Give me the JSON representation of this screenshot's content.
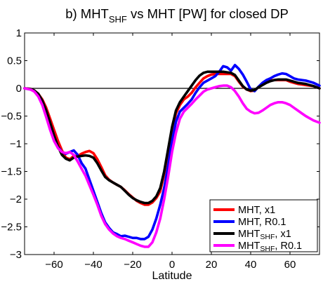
{
  "chart_data": {
    "type": "line",
    "title": {
      "prefix": "b) MHT",
      "sub": "SHF",
      "suffix": " vs MHT [PW] for closed DP"
    },
    "xlabel": "Latitude",
    "ylabel": "",
    "xlim": [
      -75,
      75
    ],
    "ylim": [
      -3,
      1
    ],
    "xticks": [
      -60,
      -40,
      -20,
      0,
      20,
      40,
      60
    ],
    "yticks": [
      -3,
      -2.5,
      -2,
      -1.5,
      -1,
      -0.5,
      0,
      0.5,
      1
    ],
    "xtick_labels": [
      "−60",
      "−40",
      "−20",
      "0",
      "20",
      "40",
      "60"
    ],
    "ytick_labels": [
      "−3",
      "−2.5",
      "−2",
      "−1.5",
      "−1",
      "−0.5",
      "0",
      "0.5",
      "1"
    ],
    "grid": false,
    "legend_position": "bottom-right",
    "zero_line": true,
    "series": [
      {
        "name": "MHT, x1",
        "legend": {
          "main": "MHT, x1",
          "sub": "",
          "after": ""
        },
        "color": "#ff0000",
        "x": [
          -75,
          -72,
          -70,
          -68,
          -66,
          -64,
          -62,
          -60,
          -58,
          -56,
          -54,
          -52,
          -50,
          -48,
          -46,
          -44,
          -42,
          -40,
          -38,
          -36,
          -34,
          -32,
          -30,
          -28,
          -26,
          -24,
          -22,
          -20,
          -18,
          -16,
          -14,
          -12,
          -10,
          -8,
          -6,
          -4,
          -2,
          0,
          2,
          4,
          6,
          8,
          10,
          12,
          14,
          16,
          18,
          20,
          22,
          24,
          26,
          28,
          30,
          32,
          34,
          36,
          38,
          40,
          42,
          44,
          46,
          48,
          50,
          52,
          54,
          56,
          58,
          60,
          62,
          64,
          66,
          68,
          70,
          72,
          75
        ],
        "y": [
          0,
          -0.01,
          -0.04,
          -0.1,
          -0.2,
          -0.35,
          -0.55,
          -0.75,
          -0.95,
          -1.12,
          -1.25,
          -1.28,
          -1.22,
          -1.22,
          -1.18,
          -1.15,
          -1.13,
          -1.17,
          -1.28,
          -1.42,
          -1.57,
          -1.65,
          -1.7,
          -1.74,
          -1.78,
          -1.84,
          -1.91,
          -1.97,
          -2.03,
          -2.07,
          -2.1,
          -2.1,
          -2.06,
          -1.98,
          -1.86,
          -1.55,
          -1.15,
          -0.75,
          -0.45,
          -0.3,
          -0.2,
          -0.15,
          -0.08,
          0.02,
          0.1,
          0.18,
          0.22,
          0.25,
          0.26,
          0.26,
          0.26,
          0.26,
          0.26,
          0.22,
          0.12,
          0.03,
          -0.02,
          -0.05,
          -0.04,
          0.02,
          0.08,
          0.12,
          0.14,
          0.15,
          0.15,
          0.15,
          0.15,
          0.12,
          0.1,
          0.08,
          0.07,
          0.06,
          0.05,
          0.04,
          0.0
        ]
      },
      {
        "name": "MHT, R0.1",
        "legend": {
          "main": "MHT, R0.1",
          "sub": "",
          "after": ""
        },
        "color": "#0000ff",
        "x": [
          -75,
          -72,
          -70,
          -68,
          -66,
          -64,
          -62,
          -60,
          -58,
          -56,
          -54,
          -52,
          -50,
          -48,
          -46,
          -44,
          -42,
          -40,
          -38,
          -36,
          -34,
          -32,
          -30,
          -28,
          -26,
          -24,
          -22,
          -20,
          -18,
          -16,
          -14,
          -12,
          -10,
          -8,
          -6,
          -4,
          -2,
          0,
          2,
          4,
          6,
          8,
          10,
          12,
          14,
          16,
          18,
          20,
          22,
          24,
          26,
          28,
          30,
          32,
          34,
          36,
          38,
          40,
          42,
          44,
          46,
          48,
          50,
          52,
          54,
          56,
          58,
          60,
          62,
          64,
          66,
          68,
          70,
          72,
          75
        ],
        "y": [
          0,
          -0.02,
          -0.05,
          -0.12,
          -0.25,
          -0.45,
          -0.68,
          -0.9,
          -1.05,
          -1.15,
          -1.18,
          -1.15,
          -1.12,
          -1.2,
          -1.35,
          -1.45,
          -1.65,
          -1.85,
          -2.05,
          -2.25,
          -2.42,
          -2.52,
          -2.6,
          -2.63,
          -2.67,
          -2.66,
          -2.68,
          -2.7,
          -2.7,
          -2.72,
          -2.72,
          -2.68,
          -2.55,
          -2.35,
          -2.1,
          -1.8,
          -1.4,
          -0.95,
          -0.6,
          -0.42,
          -0.35,
          -0.28,
          -0.2,
          -0.08,
          0.02,
          0.1,
          0.14,
          0.18,
          0.22,
          0.3,
          0.4,
          0.38,
          0.32,
          0.42,
          0.35,
          0.25,
          0.12,
          -0.02,
          -0.05,
          0.03,
          0.1,
          0.15,
          0.18,
          0.22,
          0.25,
          0.27,
          0.26,
          0.22,
          0.18,
          0.16,
          0.15,
          0.14,
          0.12,
          0.1,
          0.05
        ]
      },
      {
        "name": "MHT_SHF, x1",
        "legend": {
          "main": "MHT",
          "sub": "SHF",
          "after": ", x1"
        },
        "color": "#000000",
        "x": [
          -75,
          -72,
          -70,
          -68,
          -66,
          -64,
          -62,
          -60,
          -58,
          -56,
          -54,
          -52,
          -50,
          -48,
          -46,
          -44,
          -42,
          -40,
          -38,
          -36,
          -34,
          -32,
          -30,
          -28,
          -26,
          -24,
          -22,
          -20,
          -18,
          -16,
          -14,
          -12,
          -10,
          -8,
          -6,
          -4,
          -2,
          0,
          2,
          4,
          6,
          8,
          10,
          12,
          14,
          16,
          18,
          20,
          22,
          24,
          26,
          28,
          30,
          32,
          34,
          36,
          38,
          40,
          42,
          44,
          46,
          48,
          50,
          52,
          54,
          56,
          58,
          60,
          62,
          64,
          66,
          68,
          70,
          72,
          75
        ],
        "y": [
          0,
          -0.01,
          -0.04,
          -0.1,
          -0.22,
          -0.4,
          -0.62,
          -0.85,
          -1.05,
          -1.2,
          -1.27,
          -1.3,
          -1.25,
          -1.23,
          -1.22,
          -1.21,
          -1.22,
          -1.25,
          -1.35,
          -1.48,
          -1.6,
          -1.66,
          -1.7,
          -1.74,
          -1.78,
          -1.85,
          -1.92,
          -1.98,
          -2.02,
          -2.05,
          -2.07,
          -2.07,
          -2.03,
          -1.95,
          -1.8,
          -1.5,
          -1.1,
          -0.7,
          -0.4,
          -0.25,
          -0.15,
          -0.05,
          0.05,
          0.15,
          0.23,
          0.28,
          0.3,
          0.3,
          0.3,
          0.3,
          0.3,
          0.29,
          0.28,
          0.24,
          0.14,
          0.04,
          -0.02,
          -0.04,
          -0.03,
          0.02,
          0.06,
          0.1,
          0.13,
          0.15,
          0.16,
          0.16,
          0.16,
          0.14,
          0.12,
          0.1,
          0.09,
          0.08,
          0.06,
          0.04,
          0.0
        ]
      },
      {
        "name": "MHT_SHF, R0.1",
        "legend": {
          "main": "MHT",
          "sub": "SHF",
          "after": ", R0.1"
        },
        "color": "#ff00ff",
        "x": [
          -75,
          -72,
          -70,
          -68,
          -66,
          -64,
          -62,
          -60,
          -58,
          -56,
          -54,
          -52,
          -50,
          -48,
          -46,
          -44,
          -42,
          -40,
          -38,
          -36,
          -34,
          -32,
          -30,
          -28,
          -26,
          -24,
          -22,
          -20,
          -18,
          -16,
          -14,
          -12,
          -10,
          -8,
          -6,
          -4,
          -2,
          0,
          2,
          4,
          6,
          8,
          10,
          12,
          14,
          16,
          18,
          20,
          22,
          24,
          26,
          28,
          30,
          32,
          34,
          36,
          38,
          40,
          42,
          44,
          46,
          48,
          50,
          52,
          54,
          56,
          58,
          60,
          62,
          64,
          66,
          68,
          70,
          72,
          75
        ],
        "y": [
          0,
          -0.02,
          -0.06,
          -0.15,
          -0.3,
          -0.52,
          -0.75,
          -0.95,
          -1.08,
          -1.15,
          -1.17,
          -1.15,
          -1.2,
          -1.32,
          -1.45,
          -1.58,
          -1.75,
          -1.92,
          -2.1,
          -2.3,
          -2.45,
          -2.55,
          -2.62,
          -2.67,
          -2.7,
          -2.72,
          -2.75,
          -2.78,
          -2.81,
          -2.84,
          -2.86,
          -2.86,
          -2.78,
          -2.6,
          -2.35,
          -2.0,
          -1.6,
          -1.15,
          -0.8,
          -0.55,
          -0.42,
          -0.35,
          -0.28,
          -0.2,
          -0.13,
          -0.06,
          -0.02,
          0.0,
          0.02,
          0.04,
          0.05,
          0.05,
          0.02,
          -0.05,
          -0.15,
          -0.27,
          -0.37,
          -0.42,
          -0.45,
          -0.44,
          -0.4,
          -0.35,
          -0.3,
          -0.27,
          -0.25,
          -0.25,
          -0.27,
          -0.3,
          -0.35,
          -0.4,
          -0.45,
          -0.5,
          -0.54,
          -0.58,
          -0.62
        ]
      }
    ]
  }
}
